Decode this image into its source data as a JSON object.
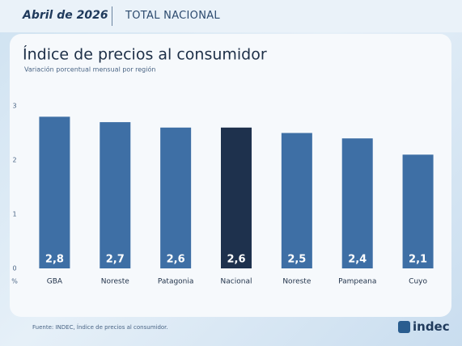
{
  "header": {
    "date": "Abril de 2026",
    "scope": "TOTAL NACIONAL"
  },
  "chart_data": {
    "type": "bar",
    "title": "Índice de precios al consumidor",
    "subtitle": "Variación porcentual mensual por región",
    "y_label": "%",
    "categories": [
      "GBA",
      "Noreste",
      "Patagonia",
      "Nacional",
      "Noreste",
      "Pampeana",
      "Cuyo"
    ],
    "values": [
      2.8,
      2.7,
      2.6,
      2.6,
      2.5,
      2.4,
      2.1
    ],
    "value_labels": [
      "2,8",
      "2,7",
      "2,6",
      "2,6",
      "2,5",
      "2,4",
      "2,1"
    ],
    "colors": [
      "#3e6fa5",
      "#3e6fa5",
      "#3e6fa5",
      "#1e314d",
      "#3e6fa5",
      "#3e6fa5",
      "#3e6fa5"
    ],
    "ylim": [
      0,
      3
    ],
    "yticks": [
      0,
      1,
      2,
      3
    ],
    "grid": false
  },
  "footer": {
    "source": "Fuente: INDEC, Índice de precios al consumidor.",
    "logo": "indec"
  }
}
